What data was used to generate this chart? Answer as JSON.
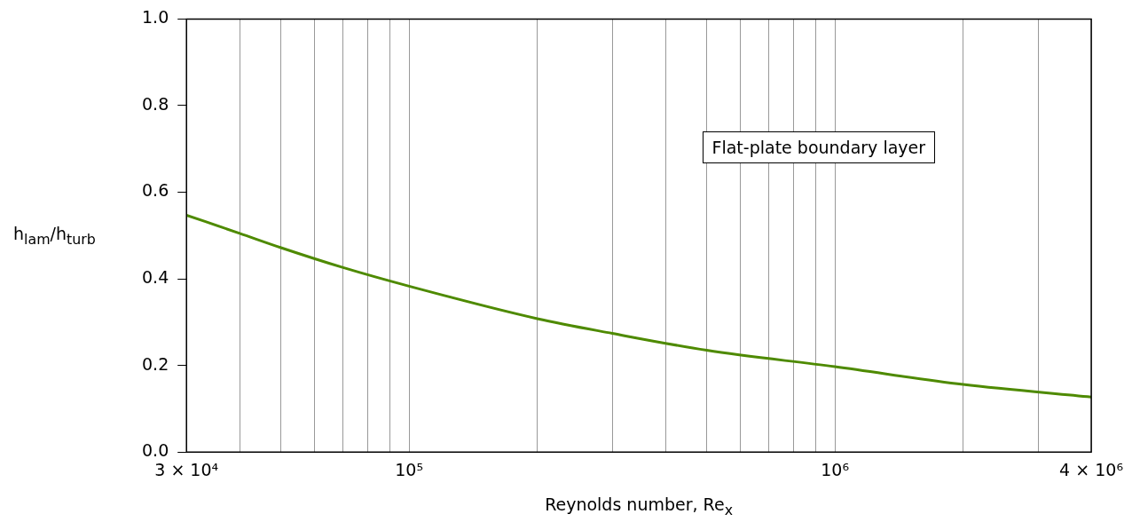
{
  "chart_data": {
    "type": "line",
    "xlabel": "Reynolds number, Re$_{x}$",
    "ylabel": "h$_{lam}$/h$_{turb}$",
    "annotations": [
      "Flat-plate boundary layer"
    ],
    "log": "x",
    "grid": "x",
    "marker": "none",
    "line_style": "solid",
    "xlim": [
      30000,
      4000000
    ],
    "xticks": [
      {
        "value": 30000,
        "label": "3 × 10⁴"
      },
      {
        "value": 40000,
        "label": null
      },
      {
        "value": 50000,
        "label": null
      },
      {
        "value": 60000,
        "label": null
      },
      {
        "value": 70000,
        "label": null
      },
      {
        "value": 80000,
        "label": null
      },
      {
        "value": 90000,
        "label": null
      },
      {
        "value": 100000,
        "label": "10⁵"
      },
      {
        "value": 200000,
        "label": null
      },
      {
        "value": 300000,
        "label": null
      },
      {
        "value": 400000,
        "label": null
      },
      {
        "value": 500000,
        "label": null
      },
      {
        "value": 600000,
        "label": null
      },
      {
        "value": 700000,
        "label": null
      },
      {
        "value": 800000,
        "label": null
      },
      {
        "value": 900000,
        "label": null
      },
      {
        "value": 1000000,
        "label": "10⁶"
      },
      {
        "value": 2000000,
        "label": null
      },
      {
        "value": 3000000,
        "label": null
      },
      {
        "value": 4000000,
        "label": "4 × 10⁶"
      }
    ],
    "ylim": [
      0,
      1
    ],
    "yticks": [
      {
        "value": 0,
        "label": "0.0"
      },
      0.2,
      0.4,
      0.6,
      0.8,
      {
        "value": 1,
        "label": "1.0"
      }
    ],
    "x": [
      30000,
      40000,
      50000,
      70000,
      100000,
      200000,
      300000,
      500000,
      1000000,
      2000000,
      4000000
    ],
    "series": [
      {
        "color": "#4e8a00",
        "values": [
          0.547,
          0.505,
          0.472,
          0.426,
          0.383,
          0.308,
          0.274,
          0.235,
          0.197,
          0.156,
          0.127
        ]
      }
    ]
  }
}
